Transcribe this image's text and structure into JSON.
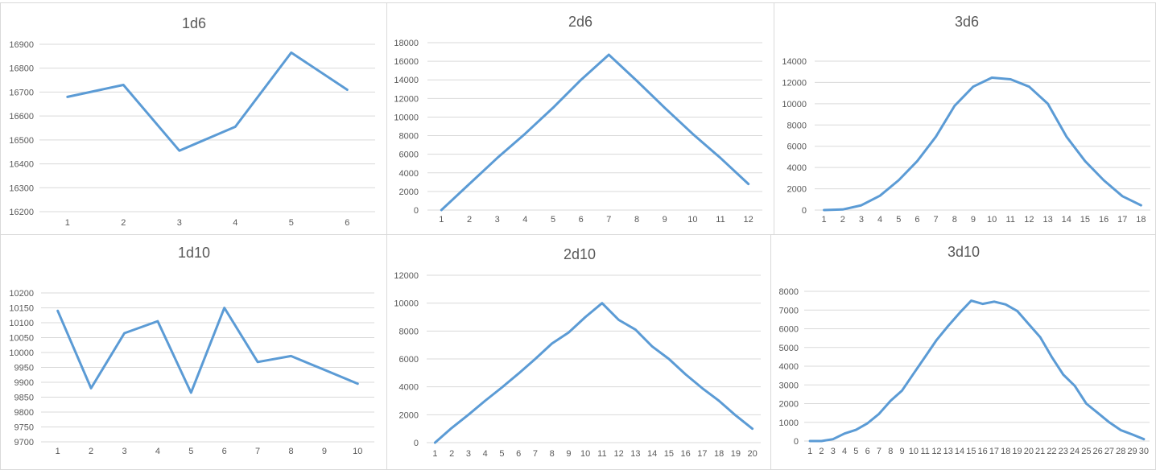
{
  "chart_data": [
    {
      "type": "line",
      "title": "1d6",
      "categories": [
        "1",
        "2",
        "3",
        "4",
        "5",
        "6"
      ],
      "values": [
        16680,
        16730,
        16455,
        16555,
        16865,
        16710
      ],
      "ylim": [
        16200,
        16900
      ],
      "yticks": [
        16200,
        16300,
        16400,
        16500,
        16600,
        16700,
        16800,
        16900
      ],
      "grid": true,
      "color": "#5b9bd5"
    },
    {
      "type": "line",
      "title": "2d6",
      "categories": [
        "1",
        "2",
        "3",
        "4",
        "5",
        "6",
        "7",
        "8",
        "9",
        "10",
        "11",
        "12"
      ],
      "values": [
        0,
        2800,
        5600,
        8200,
        11000,
        14000,
        16700,
        13900,
        11000,
        8200,
        5600,
        2800
      ],
      "ylim": [
        0,
        18000
      ],
      "yticks": [
        0,
        2000,
        4000,
        6000,
        8000,
        10000,
        12000,
        14000,
        16000,
        18000
      ],
      "grid": true,
      "color": "#5b9bd5"
    },
    {
      "type": "line",
      "title": "3d6",
      "categories": [
        "1",
        "2",
        "3",
        "4",
        "5",
        "6",
        "7",
        "8",
        "9",
        "10",
        "11",
        "12",
        "13",
        "14",
        "15",
        "16",
        "17",
        "18"
      ],
      "values": [
        0,
        50,
        450,
        1350,
        2800,
        4600,
        6900,
        9800,
        11600,
        12450,
        12300,
        11600,
        10000,
        6900,
        4600,
        2800,
        1300,
        450
      ],
      "ylim": [
        0,
        14000
      ],
      "yticks": [
        0,
        2000,
        4000,
        6000,
        8000,
        10000,
        12000,
        14000
      ],
      "grid": true,
      "color": "#5b9bd5"
    },
    {
      "type": "line",
      "title": "1d10",
      "categories": [
        "1",
        "2",
        "3",
        "4",
        "5",
        "6",
        "7",
        "8",
        "9",
        "10"
      ],
      "values": [
        10140,
        9880,
        10065,
        10105,
        9865,
        10150,
        9968,
        9988,
        9942,
        9895
      ],
      "ylim": [
        9700,
        10200
      ],
      "yticks": [
        9700,
        9750,
        9800,
        9850,
        9900,
        9950,
        10000,
        10050,
        10100,
        10150,
        10200
      ],
      "grid": true,
      "color": "#5b9bd5"
    },
    {
      "type": "line",
      "title": "2d10",
      "categories": [
        "1",
        "2",
        "3",
        "4",
        "5",
        "6",
        "7",
        "8",
        "9",
        "10",
        "11",
        "12",
        "13",
        "14",
        "15",
        "16",
        "17",
        "18",
        "19",
        "20"
      ],
      "values": [
        0,
        1050,
        2000,
        3000,
        3950,
        4950,
        6000,
        7100,
        7900,
        9000,
        10000,
        8800,
        8100,
        6900,
        6000,
        4900,
        3900,
        3000,
        1950,
        1000
      ],
      "ylim": [
        0,
        12000
      ],
      "yticks": [
        0,
        2000,
        4000,
        6000,
        8000,
        10000,
        12000
      ],
      "grid": true,
      "color": "#5b9bd5"
    },
    {
      "type": "line",
      "title": "3d10",
      "categories": [
        "1",
        "2",
        "3",
        "4",
        "5",
        "6",
        "7",
        "8",
        "9",
        "10",
        "11",
        "12",
        "13",
        "14",
        "15",
        "16",
        "17",
        "18",
        "19",
        "20",
        "21",
        "22",
        "23",
        "24",
        "25",
        "26",
        "27",
        "28",
        "29",
        "30"
      ],
      "values": [
        0,
        0,
        100,
        400,
        600,
        950,
        1450,
        2150,
        2700,
        3600,
        4500,
        5400,
        6150,
        6850,
        7500,
        7330,
        7450,
        7300,
        6950,
        6250,
        5550,
        4500,
        3550,
        2950,
        2000,
        1500,
        1000,
        580,
        350,
        100
      ],
      "ylim": [
        0,
        8000
      ],
      "yticks": [
        0,
        1000,
        2000,
        3000,
        4000,
        5000,
        6000,
        7000,
        8000
      ],
      "grid": true,
      "color": "#5b9bd5"
    }
  ]
}
